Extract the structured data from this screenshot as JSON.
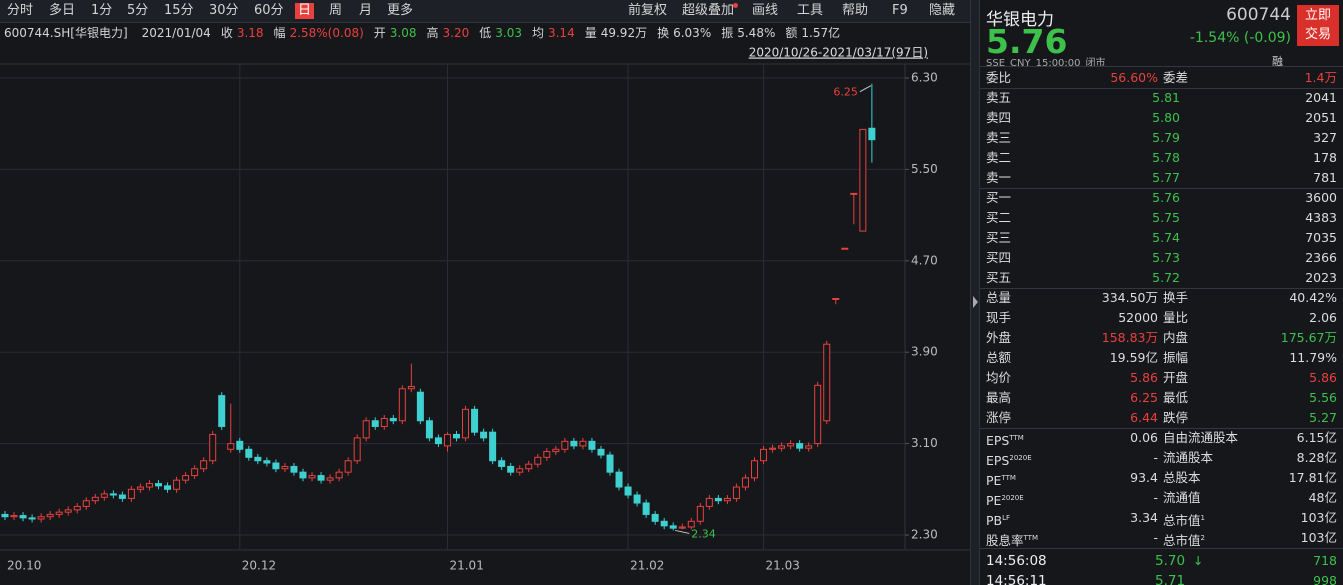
{
  "toolbar": {
    "periods": [
      "分时",
      "多日",
      "1分",
      "5分",
      "15分",
      "30分",
      "60分",
      "日",
      "周",
      "月",
      "更多"
    ],
    "active": 7,
    "tools": [
      "前复权",
      "超级叠加",
      "画线",
      "工具",
      "帮助",
      "F9",
      "隐藏"
    ]
  },
  "info_bar": {
    "code": "600744.SH[华银电力]",
    "date": "2021/01/04",
    "items": [
      {
        "label": "收",
        "value": "3.18",
        "color": "#e8413d"
      },
      {
        "label": "幅",
        "value": "2.58%(0.08)",
        "color": "#e8413d"
      },
      {
        "label": "开",
        "value": "3.08",
        "color": "#3ec14b"
      },
      {
        "label": "高",
        "value": "3.20",
        "color": "#e8413d"
      },
      {
        "label": "低",
        "value": "3.03",
        "color": "#3ec14b"
      },
      {
        "label": "均",
        "value": "3.14",
        "color": "#e8413d"
      },
      {
        "label": "量",
        "value": "49.92万"
      },
      {
        "label": "换",
        "value": "6.03%"
      },
      {
        "label": "振",
        "value": "5.48%"
      },
      {
        "label": "额",
        "value": "1.57亿"
      }
    ]
  },
  "chart_data": {
    "type": "candlestick",
    "range_label": "2020/10/26-2021/03/17(97日)",
    "categories": [
      "20.10",
      null,
      null,
      null,
      null,
      null,
      null,
      null,
      null,
      null,
      null,
      null,
      null,
      null,
      null,
      null,
      null,
      null,
      null,
      null,
      null,
      null,
      null,
      null,
      null,
      null,
      "20.12",
      null,
      null,
      null,
      null,
      null,
      null,
      null,
      null,
      null,
      null,
      null,
      null,
      null,
      null,
      null,
      null,
      null,
      null,
      null,
      null,
      null,
      null,
      "21.01",
      null,
      null,
      null,
      null,
      null,
      null,
      null,
      null,
      null,
      null,
      null,
      null,
      null,
      null,
      null,
      null,
      null,
      null,
      null,
      "21.02",
      null,
      null,
      null,
      null,
      null,
      null,
      null,
      null,
      null,
      null,
      null,
      null,
      null,
      null,
      "21.03",
      null,
      null,
      null,
      null,
      null,
      null,
      null,
      null,
      null,
      null,
      null,
      null
    ],
    "open": [
      2.48,
      2.46,
      2.47,
      2.45,
      2.44,
      2.46,
      2.48,
      2.5,
      2.52,
      2.55,
      2.6,
      2.63,
      2.66,
      2.65,
      2.62,
      2.7,
      2.72,
      2.75,
      2.73,
      2.7,
      2.78,
      2.82,
      2.88,
      2.95,
      3.52,
      3.05,
      3.12,
      3.05,
      2.98,
      2.95,
      2.93,
      2.88,
      2.9,
      2.85,
      2.8,
      2.82,
      2.78,
      2.8,
      2.85,
      2.95,
      3.15,
      3.3,
      3.25,
      3.32,
      3.3,
      3.58,
      3.55,
      3.3,
      3.15,
      3.08,
      3.18,
      3.15,
      3.4,
      3.2,
      3.2,
      2.95,
      2.9,
      2.85,
      2.88,
      2.92,
      2.98,
      3.03,
      3.05,
      3.12,
      3.08,
      3.12,
      3.05,
      3.0,
      2.85,
      2.72,
      2.65,
      2.58,
      2.48,
      2.42,
      2.38,
      2.36,
      2.37,
      2.42,
      2.55,
      2.62,
      2.6,
      2.62,
      2.72,
      2.8,
      2.95,
      3.05,
      3.06,
      3.08,
      3.1,
      3.06,
      3.1,
      3.3,
      4.37,
      4.81,
      5.29,
      4.96,
      5.86
    ],
    "high": [
      2.51,
      2.5,
      2.5,
      2.48,
      2.49,
      2.51,
      2.53,
      2.55,
      2.58,
      2.63,
      2.66,
      2.69,
      2.69,
      2.68,
      2.73,
      2.75,
      2.78,
      2.78,
      2.76,
      2.81,
      2.85,
      2.91,
      2.98,
      3.21,
      3.55,
      3.45,
      3.15,
      3.08,
      3.01,
      2.98,
      2.96,
      2.93,
      2.93,
      2.88,
      2.85,
      2.85,
      2.83,
      2.88,
      2.98,
      3.18,
      3.33,
      3.33,
      3.35,
      3.35,
      3.61,
      3.8,
      3.58,
      3.33,
      3.18,
      3.2,
      3.21,
      3.43,
      3.43,
      3.23,
      3.23,
      2.98,
      2.93,
      2.91,
      2.95,
      3.01,
      3.06,
      3.08,
      3.15,
      3.15,
      3.15,
      3.15,
      3.08,
      3.03,
      2.88,
      2.75,
      2.68,
      2.61,
      2.51,
      2.45,
      2.41,
      2.4,
      2.45,
      2.58,
      2.65,
      2.65,
      2.65,
      2.75,
      2.83,
      2.98,
      3.08,
      3.09,
      3.11,
      3.13,
      3.13,
      3.11,
      3.64,
      4.0,
      4.37,
      4.81,
      5.29,
      5.85,
      6.25
    ],
    "low": [
      2.43,
      2.43,
      2.42,
      2.41,
      2.41,
      2.43,
      2.45,
      2.47,
      2.49,
      2.52,
      2.57,
      2.6,
      2.62,
      2.59,
      2.59,
      2.67,
      2.69,
      2.7,
      2.67,
      2.67,
      2.75,
      2.79,
      2.85,
      2.92,
      3.22,
      3.02,
      3.02,
      2.95,
      2.92,
      2.9,
      2.85,
      2.85,
      2.82,
      2.77,
      2.77,
      2.75,
      2.75,
      2.77,
      2.82,
      2.92,
      3.12,
      3.22,
      3.22,
      3.27,
      3.27,
      3.55,
      3.27,
      3.12,
      3.07,
      3.03,
      3.12,
      3.12,
      3.17,
      3.12,
      2.92,
      2.87,
      2.82,
      2.82,
      2.85,
      2.89,
      2.95,
      3.0,
      3.02,
      3.05,
      3.05,
      3.02,
      2.97,
      2.82,
      2.69,
      2.62,
      2.55,
      2.45,
      2.39,
      2.35,
      2.34,
      2.35,
      2.35,
      2.39,
      2.52,
      2.57,
      2.57,
      2.59,
      2.69,
      2.77,
      2.92,
      3.02,
      3.03,
      3.05,
      3.03,
      3.03,
      3.07,
      3.27,
      4.32,
      4.81,
      5.02,
      4.96,
      5.56
    ],
    "close": [
      2.46,
      2.47,
      2.45,
      2.44,
      2.46,
      2.48,
      2.5,
      2.52,
      2.55,
      2.6,
      2.63,
      2.66,
      2.65,
      2.62,
      2.7,
      2.72,
      2.75,
      2.73,
      2.7,
      2.78,
      2.82,
      2.88,
      2.95,
      3.18,
      3.25,
      3.1,
      3.05,
      2.98,
      2.95,
      2.93,
      2.88,
      2.9,
      2.85,
      2.8,
      2.82,
      2.78,
      2.8,
      2.85,
      2.95,
      3.15,
      3.3,
      3.25,
      3.32,
      3.3,
      3.58,
      3.6,
      3.3,
      3.15,
      3.1,
      3.18,
      3.15,
      3.4,
      3.2,
      3.15,
      2.95,
      2.9,
      2.85,
      2.88,
      2.92,
      2.98,
      3.03,
      3.05,
      3.12,
      3.08,
      3.12,
      3.05,
      3.0,
      2.85,
      2.72,
      2.65,
      2.58,
      2.48,
      2.42,
      2.38,
      2.36,
      2.37,
      2.42,
      2.55,
      2.62,
      2.6,
      2.62,
      2.72,
      2.8,
      2.95,
      3.05,
      3.06,
      3.08,
      3.1,
      3.06,
      3.08,
      3.61,
      3.97,
      4.37,
      4.81,
      5.29,
      5.85,
      5.76
    ],
    "up_color": "#e8413d",
    "down_color": "#3fd0d0",
    "max_color": "#e8413d",
    "min_color": "#3ec14b",
    "ylim": [
      2.3,
      6.3
    ],
    "yticks": [
      {
        "value": 6.3,
        "label": "6.30"
      },
      {
        "value": 5.5,
        "label": "5.50"
      },
      {
        "value": 4.7,
        "label": "4.70"
      },
      {
        "value": 3.9,
        "label": "3.90"
      },
      {
        "value": 3.1,
        "label": "3.10"
      },
      {
        "value": 2.3,
        "label": "2.30"
      }
    ],
    "grid": true
  },
  "quote": {
    "name": "华银电力",
    "code": "600744",
    "price": "5.76",
    "change": "-1.54% (-0.09)",
    "color": "#3ec14b",
    "exchange": "SSE",
    "currency": "CNY",
    "time": "15:00:00",
    "status": "闭市",
    "badge": "融",
    "button": [
      "立即",
      "交易"
    ]
  },
  "order_ratio": [
    {
      "label": "委比",
      "value": "56.60%",
      "color": "#e8413d"
    },
    {
      "label": "委差",
      "value": "1.4万",
      "color": "#e8413d"
    }
  ],
  "asks": [
    {
      "label": "卖五",
      "price": "5.81",
      "volume": "2041"
    },
    {
      "label": "卖四",
      "price": "5.80",
      "volume": "2051"
    },
    {
      "label": "卖三",
      "price": "5.79",
      "volume": "327"
    },
    {
      "label": "卖二",
      "price": "5.78",
      "volume": "178"
    },
    {
      "label": "卖一",
      "price": "5.77",
      "volume": "781"
    }
  ],
  "bids": [
    {
      "label": "买一",
      "price": "5.76",
      "volume": "3600"
    },
    {
      "label": "买二",
      "price": "5.75",
      "volume": "4383"
    },
    {
      "label": "买三",
      "price": "5.74",
      "volume": "7035"
    },
    {
      "label": "买四",
      "price": "5.73",
      "volume": "2366"
    },
    {
      "label": "买五",
      "price": "5.72",
      "volume": "2023"
    }
  ],
  "book_color": "#3ec14b",
  "stats": [
    [
      {
        "label": "总量",
        "value": "334.50万"
      },
      {
        "label": "换手",
        "value": "40.42%"
      }
    ],
    [
      {
        "label": "现手",
        "value": "52000"
      },
      {
        "label": "量比",
        "value": "2.06"
      }
    ],
    [
      {
        "label": "外盘",
        "value": "158.83万",
        "color": "#e8413d"
      },
      {
        "label": "内盘",
        "value": "175.67万",
        "color": "#3ec14b"
      }
    ],
    [
      {
        "label": "总额",
        "value": "19.59亿"
      },
      {
        "label": "振幅",
        "value": "11.79%"
      }
    ],
    [
      {
        "label": "均价",
        "value": "5.86",
        "color": "#e8413d"
      },
      {
        "label": "开盘",
        "value": "5.86",
        "color": "#e8413d"
      }
    ],
    [
      {
        "label": "最高",
        "value": "6.25",
        "color": "#e8413d"
      },
      {
        "label": "最低",
        "value": "5.56",
        "color": "#3ec14b"
      }
    ],
    [
      {
        "label": "涨停",
        "value": "6.44",
        "color": "#e8413d"
      },
      {
        "label": "跌停",
        "value": "5.27",
        "color": "#3ec14b"
      }
    ]
  ],
  "fundamentals": [
    [
      {
        "label": "EPS",
        "sup": "TTM",
        "value": "0.06"
      },
      {
        "label": "自由流通股本",
        "value": "6.15亿"
      }
    ],
    [
      {
        "label": "EPS",
        "sup": "2020E",
        "value": "-"
      },
      {
        "label": "流通股本",
        "value": "8.28亿"
      }
    ],
    [
      {
        "label": "PE",
        "sup": "TTM",
        "value": "93.4"
      },
      {
        "label": "总股本",
        "value": "17.81亿"
      }
    ],
    [
      {
        "label": "PE",
        "sup": "2020E",
        "value": "-"
      },
      {
        "label": "流通值",
        "value": "48亿"
      }
    ],
    [
      {
        "label": "PB",
        "sup": "LF",
        "value": "3.34"
      },
      {
        "label": "总市值",
        "sup": "1",
        "value": "103亿"
      }
    ],
    [
      {
        "label": "股息率",
        "sup": "TTM",
        "value": "-"
      },
      {
        "label": "总市值",
        "sup": "2",
        "value": "103亿"
      }
    ]
  ],
  "trades": [
    {
      "time": "14:56:08",
      "price": "5.70",
      "arrow": "↓",
      "volume": "718",
      "color": "#3ec14b"
    },
    {
      "time": "14:56:11",
      "price": "5.71",
      "volume": "998",
      "color": "#3ec14b"
    }
  ]
}
